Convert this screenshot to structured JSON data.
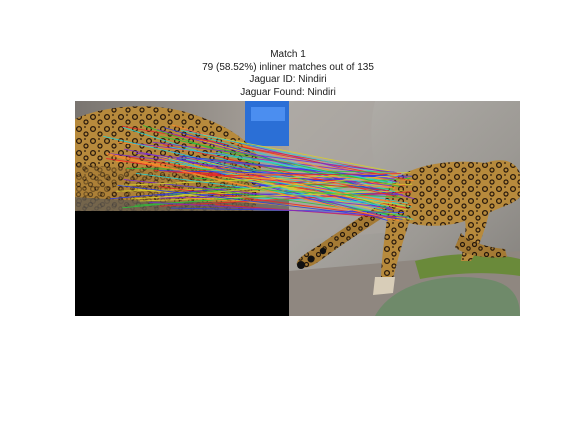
{
  "figure": {
    "title_lines": [
      "Match 1",
      "79 (58.52%) inliner matches out of 135",
      "Jaguar ID: Nindiri",
      "Jaguar Found: Nindiri"
    ]
  },
  "match": {
    "inliers": 79,
    "total": 135,
    "percent": 58.52,
    "line_colors": [
      "#e8282a",
      "#2fbf3a",
      "#2a3ae8",
      "#7a2ad0",
      "#d8d02a",
      "#2ad0d0",
      "#ff8a2a"
    ]
  },
  "images": {
    "query": {
      "name": "query-jaguar-crop"
    },
    "reference": {
      "name": "reference-jaguar-full"
    }
  }
}
